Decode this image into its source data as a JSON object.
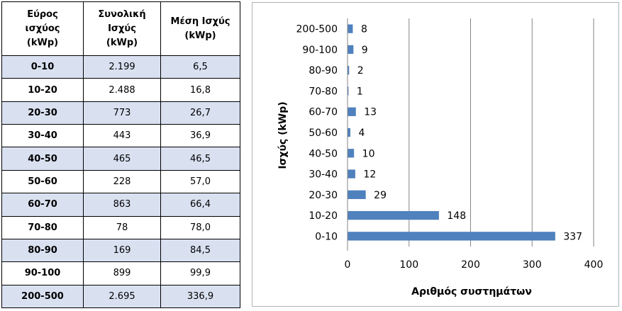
{
  "table": {
    "headers": [
      [
        "Εύρος",
        "ισχύος",
        "(kWp)"
      ],
      [
        "Συνολική",
        "Ισχύς",
        "(kWp)"
      ],
      [
        "Μέση Ισχύς",
        "(kWp)"
      ]
    ],
    "rows": [
      {
        "range": "0-10",
        "total": "2.199",
        "avg": "6,5"
      },
      {
        "range": "10-20",
        "total": "2.488",
        "avg": "16,8"
      },
      {
        "range": "20-30",
        "total": "773",
        "avg": "26,7"
      },
      {
        "range": "30-40",
        "total": "443",
        "avg": "36,9"
      },
      {
        "range": "40-50",
        "total": "465",
        "avg": "46,5"
      },
      {
        "range": "50-60",
        "total": "228",
        "avg": "57,0"
      },
      {
        "range": "60-70",
        "total": "863",
        "avg": "66,4"
      },
      {
        "range": "70-80",
        "total": "78",
        "avg": "78,0"
      },
      {
        "range": "80-90",
        "total": "169",
        "avg": "84,5"
      },
      {
        "range": "90-100",
        "total": "899",
        "avg": "99,9"
      },
      {
        "range": "200-500",
        "total": "2.695",
        "avg": "336,9"
      }
    ],
    "shaded_color": "#d9e1f1"
  },
  "chart_data": {
    "type": "bar",
    "orientation": "horizontal",
    "categories": [
      "0-10",
      "10-20",
      "20-30",
      "30-40",
      "40-50",
      "50-60",
      "60-70",
      "70-80",
      "80-90",
      "90-100",
      "200-500"
    ],
    "values": [
      337,
      148,
      29,
      12,
      10,
      4,
      13,
      1,
      2,
      9,
      8
    ],
    "xlabel": "Αριθμός συστημάτων",
    "ylabel": "Ισχύς (kWp)",
    "xlim": [
      0,
      400
    ],
    "xticks": [
      0,
      100,
      200,
      300,
      400
    ],
    "grid": "vertical",
    "legend": "none",
    "bar_color": "#4f81bd",
    "grid_color": "#868686"
  }
}
